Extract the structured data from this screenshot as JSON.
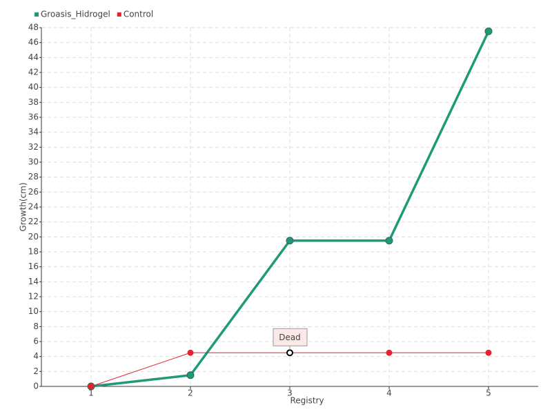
{
  "chart_data": {
    "type": "line",
    "x_label": "Registry",
    "y_label": "Growth(cm)",
    "x": [
      1,
      2,
      3,
      4,
      5
    ],
    "series": [
      {
        "name": "Groasis_Hidrogel",
        "color": "#1e9a78",
        "values": [
          0,
          1.5,
          19.5,
          19.5,
          47.5
        ]
      },
      {
        "name": "Control",
        "color": "#e8202e",
        "values": [
          0,
          4.5,
          4.5,
          4.5,
          4.5
        ]
      }
    ],
    "xlim": [
      0.5,
      5.5
    ],
    "xticks": [
      1,
      2,
      3,
      4,
      5
    ],
    "ylim": [
      0,
      48
    ],
    "yticks": [
      0,
      2,
      4,
      6,
      8,
      10,
      12,
      14,
      16,
      18,
      20,
      22,
      24,
      26,
      28,
      30,
      32,
      34,
      36,
      38,
      40,
      42,
      44,
      46,
      48
    ],
    "grid": true,
    "legend": "top-left",
    "annotations": [
      {
        "text": "Dead",
        "x": 3,
        "y": 4.5
      }
    ]
  }
}
